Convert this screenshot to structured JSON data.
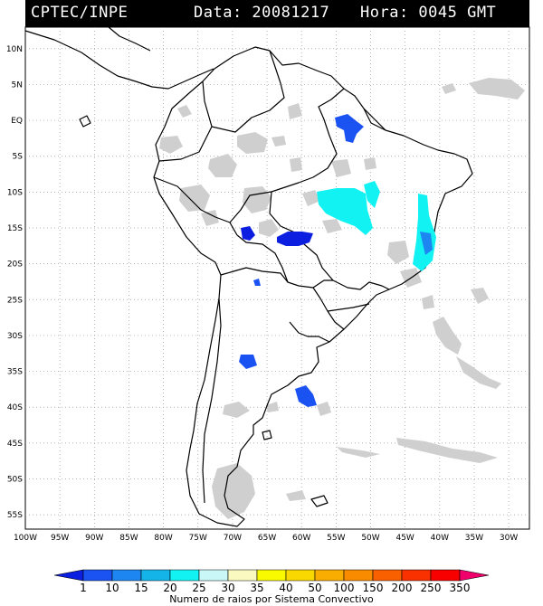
{
  "header": {
    "source": "CPTEC/INPE",
    "date_text": "Data: 20081217",
    "time_text": "Hora: 0045 GMT"
  },
  "axes": {
    "lat_labels": [
      "10N",
      "5N",
      "EQ",
      "5S",
      "10S",
      "15S",
      "20S",
      "25S",
      "30S",
      "35S",
      "40S",
      "45S",
      "50S",
      "55S"
    ],
    "lon_labels": [
      "100W",
      "95W",
      "90W",
      "85W",
      "80W",
      "75W",
      "70W",
      "65W",
      "60W",
      "55W",
      "50W",
      "45W",
      "40W",
      "35W",
      "30W"
    ],
    "lon_range": [
      -100,
      -27
    ],
    "lat_range": [
      -57,
      13
    ],
    "grid": true
  },
  "legend": {
    "title": "Numero de raios por Sistema Convectivo",
    "values": [
      "1",
      "10",
      "15",
      "20",
      "25",
      "30",
      "35",
      "40",
      "50",
      "100",
      "150",
      "200",
      "250",
      "350"
    ],
    "colors": [
      "#0c1fe0",
      "#1b53f2",
      "#1d86f0",
      "#14b4e8",
      "#12f2f2",
      "#c9f7f7",
      "#f9f9c0",
      "#f9f900",
      "#f9d700",
      "#f9ad00",
      "#f98b00",
      "#f96000",
      "#f93100",
      "#f90000",
      "#f0006a"
    ]
  },
  "systems": {
    "blue": "#1b53f2",
    "deep_blue": "#0c1fe0",
    "cyan": "#12f2f2",
    "cloud_gray": "#cfcfcf"
  }
}
